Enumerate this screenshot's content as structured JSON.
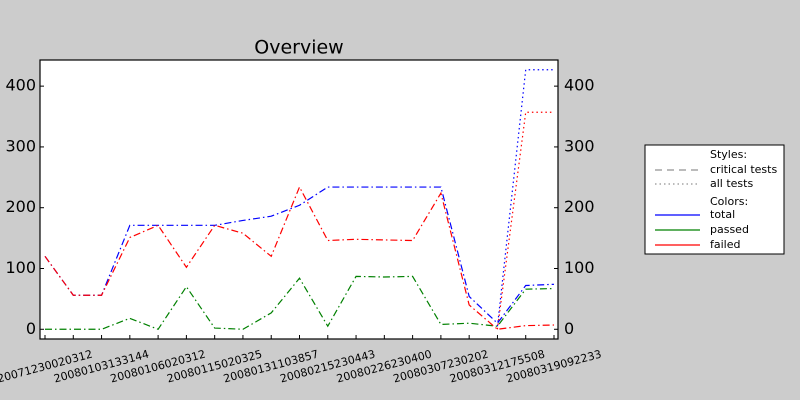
{
  "chart_data": {
    "type": "line",
    "title": "Overview",
    "categories": [
      "20071230020312",
      null,
      "20080103133144",
      null,
      "20080106020312",
      null,
      "20080115020325",
      null,
      "20080131103857",
      null,
      "20080215230443",
      null,
      "20080226230400",
      null,
      "20080307230202",
      null,
      "20080312175508",
      null,
      "20080319092233"
    ],
    "ylim": [
      -16,
      443
    ],
    "yticks": [
      0,
      100,
      200,
      300,
      400
    ],
    "series": [
      {
        "color": "#0000ff",
        "style": "critical tests",
        "values": [
          120,
          56,
          56,
          171,
          171,
          171,
          171,
          179,
          186,
          204,
          234,
          234,
          234,
          234,
          234,
          54,
          10,
          72,
          74
        ]
      },
      {
        "color": "#008000",
        "style": "critical tests",
        "values": [
          0,
          0,
          0,
          18,
          0,
          70,
          2,
          0,
          27,
          84,
          5,
          87,
          86,
          87,
          8,
          10,
          5,
          66,
          67
        ]
      },
      {
        "color": "#ff0000",
        "style": "critical tests",
        "values": [
          120,
          56,
          56,
          151,
          171,
          102,
          171,
          158,
          120,
          234,
          146,
          148,
          147,
          146,
          224,
          40,
          0,
          6,
          7
        ]
      },
      {
        "color": "#0000ff",
        "style": "all tests",
        "values": [
          null,
          null,
          null,
          null,
          null,
          null,
          null,
          null,
          null,
          null,
          null,
          null,
          null,
          null,
          null,
          null,
          5,
          427,
          427
        ]
      },
      {
        "color": "#ff0000",
        "style": "all tests",
        "values": [
          null,
          null,
          null,
          null,
          null,
          null,
          null,
          null,
          null,
          null,
          null,
          null,
          null,
          null,
          null,
          null,
          0,
          357,
          357
        ]
      }
    ],
    "legend": {
      "styles_title": "Styles:",
      "styles": [
        "critical tests",
        "all tests"
      ],
      "colors_title": "Colors:",
      "colors": [
        {
          "label": "total",
          "color": "#0000ff"
        },
        {
          "label": "passed",
          "color": "#008000"
        },
        {
          "label": "failed",
          "color": "#ff0000"
        }
      ]
    }
  }
}
